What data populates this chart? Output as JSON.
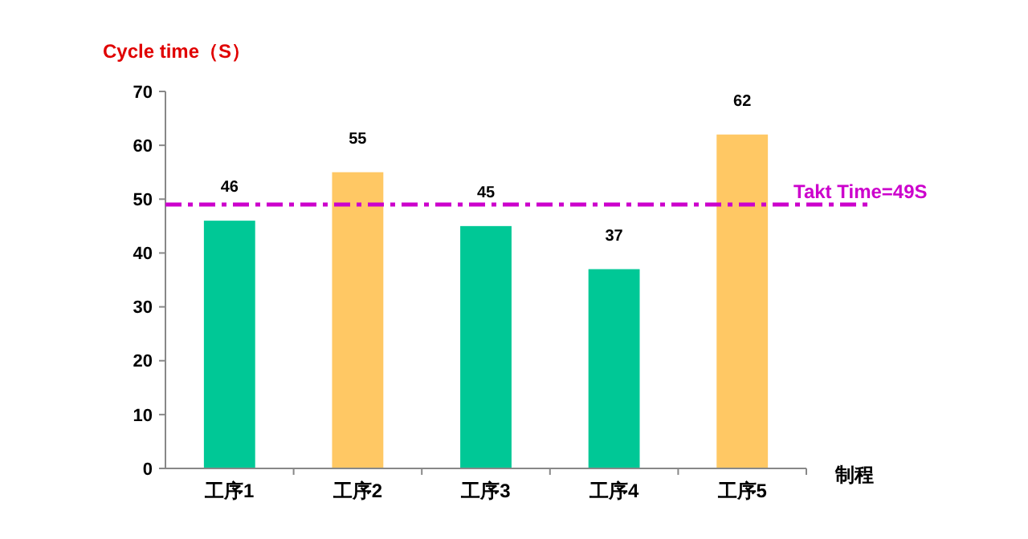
{
  "chart_data": {
    "type": "bar",
    "ylabel": "Cycle time（S）",
    "xlabel": "制程",
    "categories": [
      "工序1",
      "工序2",
      "工序3",
      "工序4",
      "工序5"
    ],
    "values": [
      46,
      55,
      45,
      37,
      62
    ],
    "colors": [
      "#00c896",
      "#ffc864",
      "#00c896",
      "#00c896",
      "#ffc864"
    ],
    "data_labels": true,
    "ylim": [
      0,
      70
    ],
    "yticks": [
      0,
      10,
      20,
      30,
      40,
      50,
      60,
      70
    ],
    "grid": false,
    "ref_lines": [
      {
        "axis": "y",
        "value": 49,
        "label": "Takt Time=49S",
        "color": "#cc00cc",
        "line_style": "dashdot"
      }
    ]
  }
}
